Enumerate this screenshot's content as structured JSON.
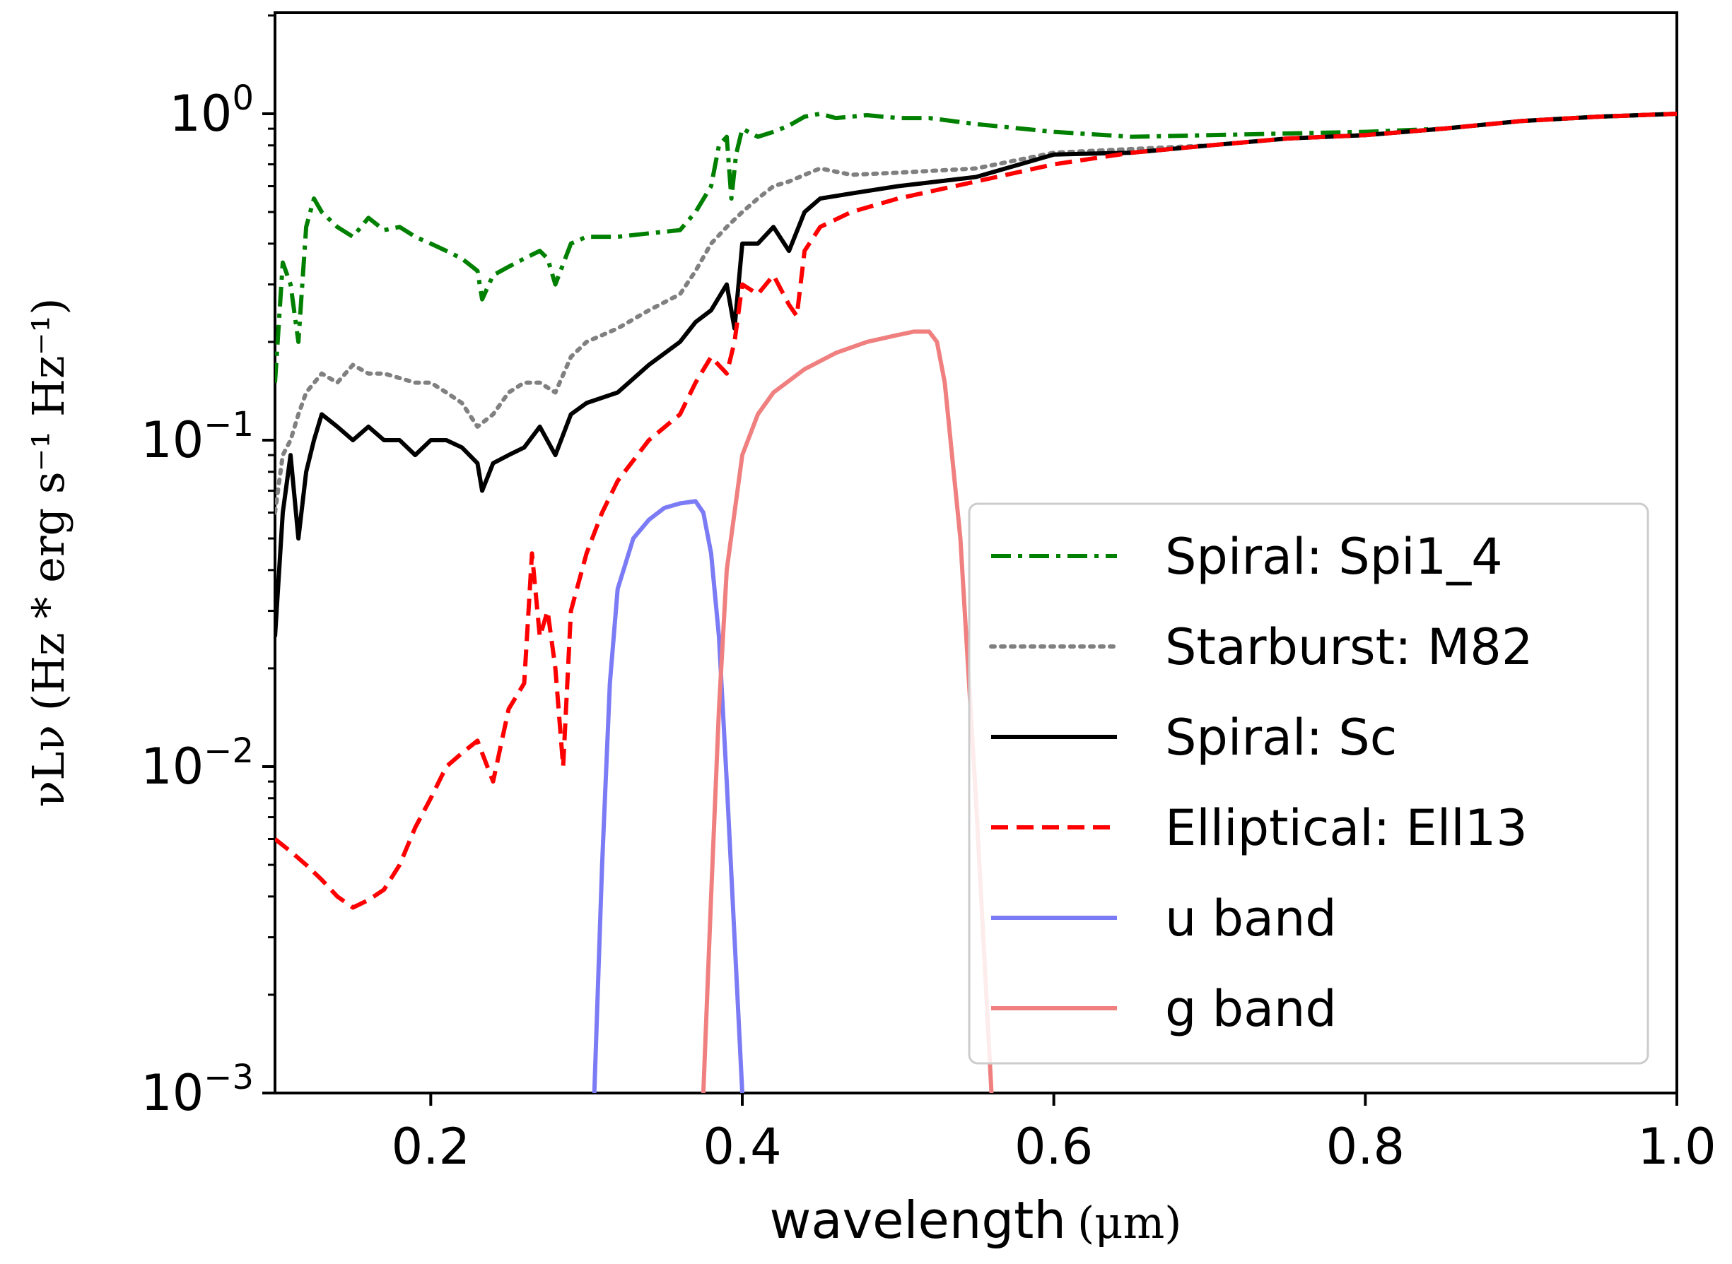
{
  "chart_data": {
    "type": "line",
    "title": "",
    "xlabel": {
      "main": "wavelength",
      "unit": "(μm)"
    },
    "ylabel": {
      "text": "νLν (Hz * erg s⁻¹ Hz⁻¹)"
    },
    "xscale": "linear",
    "yscale": "log",
    "xlim": [
      0.1,
      1.0
    ],
    "ylim": [
      0.001,
      2.0
    ],
    "x_ticks": [
      {
        "value": 0.2,
        "label": "0.2"
      },
      {
        "value": 0.4,
        "label": "0.4"
      },
      {
        "value": 0.6,
        "label": "0.6"
      },
      {
        "value": 0.8,
        "label": "0.8"
      },
      {
        "value": 1.0,
        "label": "1.0"
      }
    ],
    "y_ticks": [
      {
        "value": 1,
        "base": "10",
        "exp": "0"
      },
      {
        "value": 0.1,
        "base": "10",
        "exp": "−1"
      },
      {
        "value": 0.01,
        "base": "10",
        "exp": "−2"
      },
      {
        "value": 0.001,
        "base": "10",
        "exp": "−3"
      }
    ],
    "legend_position": "lower-right",
    "series": [
      {
        "name": "Spiral: Spi1_4",
        "color": "#008000",
        "dash": "dashdot",
        "x": [
          0.1,
          0.105,
          0.11,
          0.115,
          0.12,
          0.125,
          0.13,
          0.14,
          0.15,
          0.16,
          0.17,
          0.18,
          0.19,
          0.2,
          0.21,
          0.22,
          0.23,
          0.233,
          0.24,
          0.25,
          0.26,
          0.27,
          0.275,
          0.28,
          0.29,
          0.3,
          0.32,
          0.34,
          0.36,
          0.37,
          0.38,
          0.385,
          0.39,
          0.393,
          0.396,
          0.4,
          0.41,
          0.42,
          0.43,
          0.44,
          0.45,
          0.46,
          0.48,
          0.5,
          0.52,
          0.55,
          0.6,
          0.65,
          0.7,
          0.75,
          0.8,
          0.85,
          0.9,
          0.95,
          1.0
        ],
        "y": [
          0.15,
          0.35,
          0.3,
          0.2,
          0.45,
          0.55,
          0.5,
          0.45,
          0.42,
          0.48,
          0.44,
          0.45,
          0.42,
          0.4,
          0.38,
          0.36,
          0.33,
          0.27,
          0.32,
          0.34,
          0.36,
          0.38,
          0.36,
          0.3,
          0.4,
          0.42,
          0.42,
          0.43,
          0.44,
          0.5,
          0.6,
          0.8,
          0.85,
          0.55,
          0.75,
          0.9,
          0.85,
          0.88,
          0.92,
          0.98,
          1.0,
          0.97,
          0.99,
          0.97,
          0.97,
          0.93,
          0.88,
          0.85,
          0.86,
          0.87,
          0.88,
          0.9,
          0.95,
          0.98,
          1.0
        ]
      },
      {
        "name": "Starburst: M82",
        "color": "#808080",
        "dash": "dotted",
        "x": [
          0.1,
          0.105,
          0.11,
          0.115,
          0.12,
          0.13,
          0.14,
          0.15,
          0.16,
          0.17,
          0.18,
          0.19,
          0.2,
          0.21,
          0.22,
          0.23,
          0.24,
          0.25,
          0.26,
          0.27,
          0.28,
          0.29,
          0.3,
          0.32,
          0.34,
          0.36,
          0.37,
          0.38,
          0.39,
          0.4,
          0.41,
          0.42,
          0.43,
          0.44,
          0.45,
          0.47,
          0.5,
          0.55,
          0.6,
          0.65,
          0.7,
          0.75,
          0.8,
          0.85,
          0.9,
          0.95,
          1.0
        ],
        "y": [
          0.06,
          0.09,
          0.1,
          0.12,
          0.14,
          0.16,
          0.15,
          0.17,
          0.16,
          0.16,
          0.155,
          0.15,
          0.15,
          0.14,
          0.13,
          0.11,
          0.12,
          0.14,
          0.15,
          0.15,
          0.14,
          0.18,
          0.2,
          0.22,
          0.25,
          0.28,
          0.33,
          0.4,
          0.45,
          0.5,
          0.55,
          0.6,
          0.62,
          0.65,
          0.68,
          0.65,
          0.66,
          0.68,
          0.76,
          0.78,
          0.8,
          0.84,
          0.86,
          0.9,
          0.95,
          0.98,
          1.0
        ]
      },
      {
        "name": "Spiral: Sc",
        "color": "#000000",
        "dash": "solid",
        "x": [
          0.1,
          0.105,
          0.11,
          0.115,
          0.12,
          0.125,
          0.13,
          0.14,
          0.15,
          0.16,
          0.17,
          0.18,
          0.19,
          0.2,
          0.21,
          0.22,
          0.23,
          0.233,
          0.24,
          0.25,
          0.26,
          0.27,
          0.28,
          0.29,
          0.3,
          0.32,
          0.34,
          0.36,
          0.37,
          0.38,
          0.39,
          0.395,
          0.4,
          0.41,
          0.42,
          0.43,
          0.44,
          0.45,
          0.47,
          0.5,
          0.55,
          0.6,
          0.65,
          0.7,
          0.75,
          0.8,
          0.85,
          0.9,
          0.95,
          1.0
        ],
        "y": [
          0.025,
          0.06,
          0.09,
          0.05,
          0.08,
          0.1,
          0.12,
          0.11,
          0.1,
          0.11,
          0.1,
          0.1,
          0.09,
          0.1,
          0.1,
          0.095,
          0.085,
          0.07,
          0.085,
          0.09,
          0.095,
          0.11,
          0.09,
          0.12,
          0.13,
          0.14,
          0.17,
          0.2,
          0.23,
          0.25,
          0.3,
          0.22,
          0.4,
          0.4,
          0.45,
          0.38,
          0.5,
          0.55,
          0.57,
          0.6,
          0.64,
          0.75,
          0.76,
          0.8,
          0.84,
          0.86,
          0.9,
          0.95,
          0.98,
          1.0
        ]
      },
      {
        "name": "Elliptical: Ell13",
        "color": "#ff0000",
        "dash": "dashed",
        "x": [
          0.1,
          0.11,
          0.12,
          0.13,
          0.14,
          0.15,
          0.16,
          0.17,
          0.18,
          0.19,
          0.2,
          0.21,
          0.22,
          0.23,
          0.24,
          0.25,
          0.26,
          0.265,
          0.27,
          0.275,
          0.28,
          0.285,
          0.29,
          0.3,
          0.31,
          0.32,
          0.34,
          0.36,
          0.37,
          0.38,
          0.39,
          0.395,
          0.4,
          0.41,
          0.42,
          0.43,
          0.435,
          0.44,
          0.45,
          0.47,
          0.5,
          0.55,
          0.6,
          0.65,
          0.7,
          0.75,
          0.8,
          0.85,
          0.9,
          0.95,
          1.0
        ],
        "y": [
          0.006,
          0.0055,
          0.005,
          0.0045,
          0.004,
          0.0037,
          0.0039,
          0.0042,
          0.005,
          0.0065,
          0.008,
          0.01,
          0.011,
          0.012,
          0.009,
          0.015,
          0.018,
          0.045,
          0.025,
          0.03,
          0.02,
          0.01,
          0.03,
          0.045,
          0.06,
          0.075,
          0.1,
          0.12,
          0.15,
          0.18,
          0.16,
          0.2,
          0.3,
          0.28,
          0.32,
          0.26,
          0.24,
          0.38,
          0.45,
          0.5,
          0.55,
          0.62,
          0.7,
          0.76,
          0.8,
          0.84,
          0.86,
          0.9,
          0.95,
          0.98,
          1.0
        ]
      },
      {
        "name": "u band",
        "color": "#7b7bf5",
        "dash": "solid",
        "x": [
          0.305,
          0.31,
          0.315,
          0.32,
          0.33,
          0.34,
          0.35,
          0.36,
          0.37,
          0.375,
          0.38,
          0.385,
          0.39,
          0.395,
          0.4
        ],
        "y": [
          0.001,
          0.005,
          0.018,
          0.035,
          0.05,
          0.057,
          0.062,
          0.064,
          0.065,
          0.06,
          0.045,
          0.025,
          0.009,
          0.003,
          0.001
        ]
      },
      {
        "name": "g band",
        "color": "#f08080",
        "dash": "solid",
        "x": [
          0.375,
          0.38,
          0.385,
          0.39,
          0.4,
          0.41,
          0.42,
          0.44,
          0.46,
          0.48,
          0.5,
          0.51,
          0.52,
          0.525,
          0.53,
          0.54,
          0.55,
          0.56
        ],
        "y": [
          0.001,
          0.004,
          0.015,
          0.04,
          0.09,
          0.12,
          0.14,
          0.165,
          0.185,
          0.2,
          0.21,
          0.215,
          0.215,
          0.2,
          0.15,
          0.05,
          0.008,
          0.001
        ]
      }
    ]
  }
}
